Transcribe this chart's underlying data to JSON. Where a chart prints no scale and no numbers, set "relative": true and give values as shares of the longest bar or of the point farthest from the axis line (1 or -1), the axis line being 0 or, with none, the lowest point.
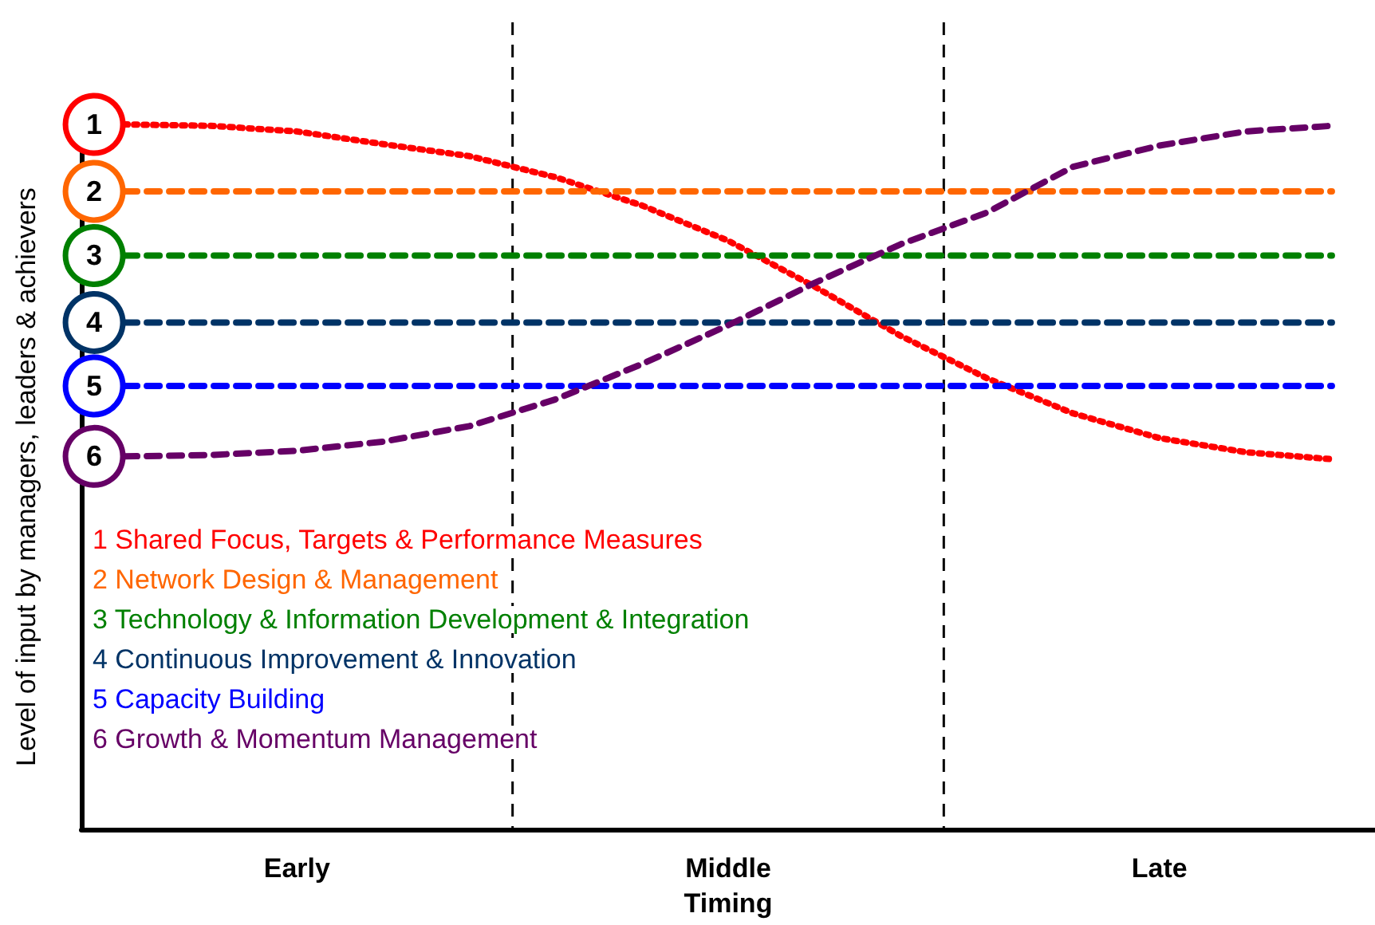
{
  "chart_data": {
    "type": "line",
    "relative": true,
    "xlabel": "Timing",
    "ylabel": "Level of input by managers, leaders & achievers",
    "categories": [
      null,
      null,
      "Early",
      null,
      null,
      null,
      null,
      "Middle",
      null,
      null,
      null,
      null,
      "Late",
      null,
      null
    ],
    "grid": "x",
    "marker": "none",
    "series": [
      {
        "name": "1 Shared Focus, Targets & Performance Measures",
        "color": "#ff0000",
        "line_style": "dotted",
        "values": [
          1.0,
          0.998,
          0.99,
          0.972,
          0.955,
          0.925,
          0.885,
          0.835,
          0.77,
          0.7,
          0.64,
          0.59,
          0.555,
          0.535,
          0.525
        ]
      },
      {
        "name": "2 Network Design & Management",
        "color": "#ff6600",
        "line_style": "dashed",
        "values": [
          0.905,
          0.905,
          0.905,
          0.905,
          0.905,
          0.905,
          0.905,
          0.905,
          0.905,
          0.905,
          0.905,
          0.905,
          0.905,
          0.905,
          0.905
        ]
      },
      {
        "name": "3 Technology & Information Development & Integration",
        "color": "#008000",
        "line_style": "dashed",
        "values": [
          0.814,
          0.814,
          0.814,
          0.814,
          0.814,
          0.814,
          0.814,
          0.814,
          0.814,
          0.814,
          0.814,
          0.814,
          0.814,
          0.814,
          0.814
        ]
      },
      {
        "name": "4 Continuous Improvement & Innovation",
        "color": "#003366",
        "line_style": "dashed",
        "values": [
          0.719,
          0.719,
          0.719,
          0.719,
          0.719,
          0.719,
          0.719,
          0.719,
          0.719,
          0.719,
          0.719,
          0.719,
          0.719,
          0.719,
          0.719
        ]
      },
      {
        "name": "5 Capacity Building",
        "color": "#0000ff",
        "line_style": "dashed",
        "values": [
          0.629,
          0.629,
          0.629,
          0.629,
          0.629,
          0.629,
          0.629,
          0.629,
          0.629,
          0.629,
          0.629,
          0.629,
          0.629,
          0.629,
          0.629
        ]
      },
      {
        "name": "6 Growth & Momentum Management",
        "color": "#660066",
        "line_style": "dashed",
        "values": [
          0.529,
          0.531,
          0.537,
          0.55,
          0.572,
          0.61,
          0.66,
          0.715,
          0.775,
          0.83,
          0.875,
          0.94,
          0.97,
          0.99,
          0.998
        ]
      }
    ],
    "annotations": [
      "1",
      "2",
      "3",
      "4",
      "5",
      "6"
    ]
  }
}
